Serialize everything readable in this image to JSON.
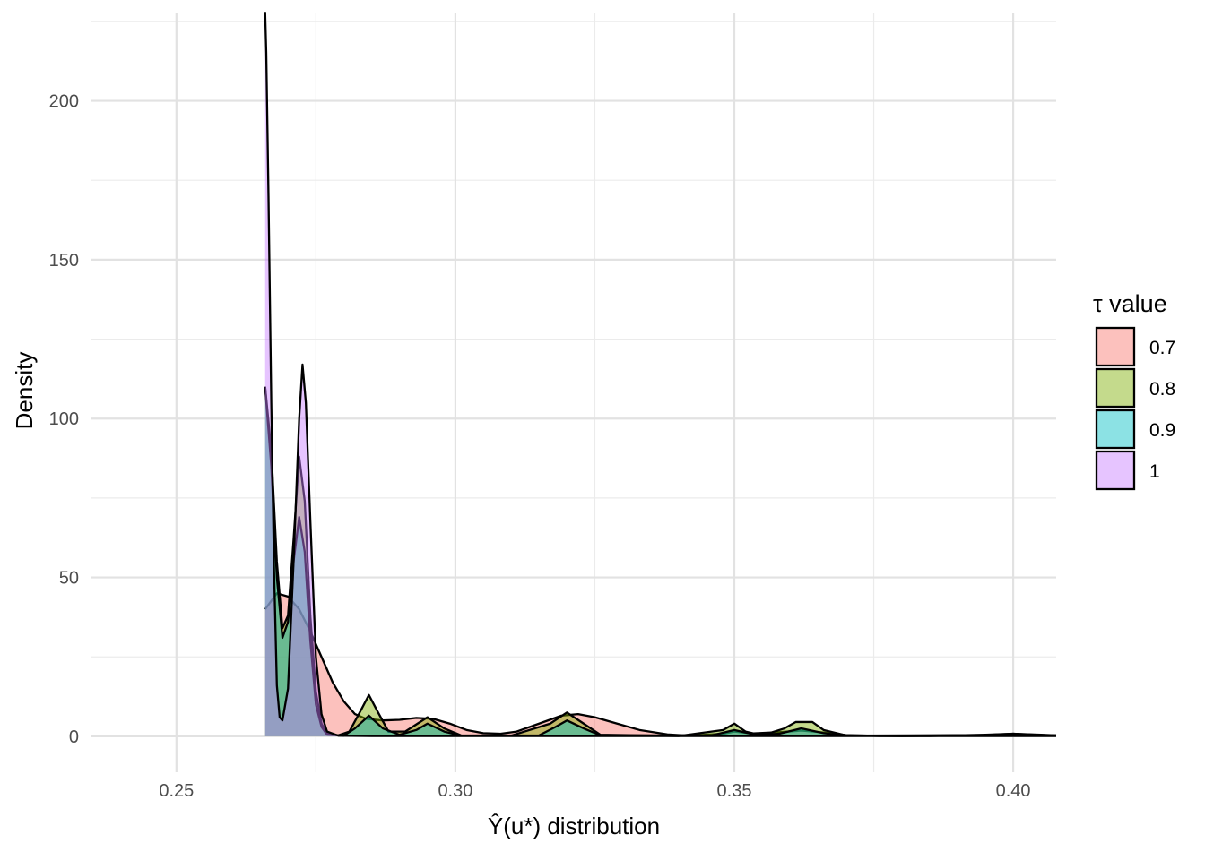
{
  "chart_data": {
    "type": "area",
    "title": "",
    "xlabel": "Ŷ(u*) distribution",
    "ylabel": "Density",
    "xlim": [
      0.2346,
      0.4077
    ],
    "ylim": [
      -11.3,
      227.5
    ],
    "x_ticks": [
      0.25,
      0.3,
      0.35,
      0.4
    ],
    "x_tick_labels": [
      "0.25",
      "0.30",
      "0.35",
      "0.40"
    ],
    "y_ticks": [
      0,
      50,
      100,
      150,
      200
    ],
    "y_tick_labels": [
      "0",
      "50",
      "100",
      "150",
      "200"
    ],
    "grid": true,
    "legend": {
      "title": "τ value",
      "position": "right"
    },
    "series": [
      {
        "name": "0.7",
        "color": "#F8766D",
        "points": [
          [
            0.2659,
            40
          ],
          [
            0.268,
            45
          ],
          [
            0.27,
            44
          ],
          [
            0.272,
            40
          ],
          [
            0.274,
            33
          ],
          [
            0.276,
            25
          ],
          [
            0.278,
            17
          ],
          [
            0.28,
            11
          ],
          [
            0.282,
            7
          ],
          [
            0.284,
            5.5
          ],
          [
            0.287,
            5
          ],
          [
            0.29,
            5.2
          ],
          [
            0.293,
            5.8
          ],
          [
            0.296,
            5.5
          ],
          [
            0.299,
            4
          ],
          [
            0.302,
            2
          ],
          [
            0.305,
            1
          ],
          [
            0.308,
            0.8
          ],
          [
            0.311,
            1.5
          ],
          [
            0.315,
            4
          ],
          [
            0.319,
            6.5
          ],
          [
            0.322,
            7
          ],
          [
            0.325,
            6
          ],
          [
            0.329,
            4
          ],
          [
            0.333,
            2
          ],
          [
            0.338,
            0.6
          ],
          [
            0.342,
            0.2
          ],
          [
            0.348,
            0.8
          ],
          [
            0.35,
            1.5
          ],
          [
            0.353,
            0.9
          ],
          [
            0.358,
            1.3
          ],
          [
            0.362,
            1.8
          ],
          [
            0.366,
            1.2
          ],
          [
            0.37,
            0.4
          ],
          [
            0.376,
            0.1
          ],
          [
            0.385,
            0.1
          ],
          [
            0.395,
            0.5
          ],
          [
            0.4,
            0.8
          ],
          [
            0.405,
            0.5
          ],
          [
            0.4077,
            0.3
          ]
        ]
      },
      {
        "name": "0.8",
        "color": "#7CAE00",
        "points": [
          [
            0.2659,
            110
          ],
          [
            0.267,
            90
          ],
          [
            0.268,
            55
          ],
          [
            0.269,
            34
          ],
          [
            0.27,
            38
          ],
          [
            0.271,
            62
          ],
          [
            0.272,
            88
          ],
          [
            0.273,
            74
          ],
          [
            0.274,
            38
          ],
          [
            0.275,
            14
          ],
          [
            0.276,
            4
          ],
          [
            0.277,
            1
          ],
          [
            0.279,
            0.3
          ],
          [
            0.281,
            1.5
          ],
          [
            0.283,
            8
          ],
          [
            0.2845,
            13
          ],
          [
            0.286,
            8
          ],
          [
            0.288,
            1.5
          ],
          [
            0.291,
            1.5
          ],
          [
            0.295,
            6
          ],
          [
            0.298,
            2.5
          ],
          [
            0.301,
            0.3
          ],
          [
            0.31,
            0.2
          ],
          [
            0.317,
            4
          ],
          [
            0.32,
            7.5
          ],
          [
            0.323,
            4
          ],
          [
            0.326,
            0.5
          ],
          [
            0.34,
            0.1
          ],
          [
            0.348,
            2
          ],
          [
            0.35,
            4
          ],
          [
            0.352,
            1.5
          ],
          [
            0.355,
            0.3
          ],
          [
            0.359,
            2.5
          ],
          [
            0.361,
            4.5
          ],
          [
            0.364,
            4.5
          ],
          [
            0.366,
            2
          ],
          [
            0.37,
            0.3
          ],
          [
            0.38,
            0.1
          ],
          [
            0.395,
            0.4
          ],
          [
            0.4,
            0.8
          ],
          [
            0.405,
            0.4
          ],
          [
            0.4077,
            0.3
          ]
        ]
      },
      {
        "name": "0.9",
        "color": "#00BFC4",
        "points": [
          [
            0.2659,
            110
          ],
          [
            0.267,
            85
          ],
          [
            0.268,
            50
          ],
          [
            0.269,
            31
          ],
          [
            0.27,
            36
          ],
          [
            0.271,
            55
          ],
          [
            0.272,
            69
          ],
          [
            0.273,
            58
          ],
          [
            0.274,
            30
          ],
          [
            0.275,
            10
          ],
          [
            0.276,
            3
          ],
          [
            0.277,
            0.5
          ],
          [
            0.28,
            0.2
          ],
          [
            0.282,
            2.5
          ],
          [
            0.2845,
            6.5
          ],
          [
            0.287,
            2.5
          ],
          [
            0.29,
            0.5
          ],
          [
            0.293,
            2
          ],
          [
            0.295,
            4
          ],
          [
            0.298,
            1.5
          ],
          [
            0.301,
            0.2
          ],
          [
            0.315,
            0.3
          ],
          [
            0.318,
            3
          ],
          [
            0.32,
            5
          ],
          [
            0.323,
            2.5
          ],
          [
            0.326,
            0.3
          ],
          [
            0.346,
            0.3
          ],
          [
            0.35,
            2
          ],
          [
            0.354,
            0.4
          ],
          [
            0.358,
            0.8
          ],
          [
            0.362,
            2.5
          ],
          [
            0.366,
            1
          ],
          [
            0.37,
            0.2
          ],
          [
            0.395,
            0.4
          ],
          [
            0.4,
            0.7
          ],
          [
            0.405,
            0.4
          ],
          [
            0.4077,
            0.3
          ]
        ]
      },
      {
        "name": "1",
        "color": "#C77CFF",
        "points": [
          [
            0.2659,
            228
          ],
          [
            0.2661,
            215
          ],
          [
            0.2665,
            170
          ],
          [
            0.267,
            105
          ],
          [
            0.2675,
            52
          ],
          [
            0.268,
            16
          ],
          [
            0.2685,
            6
          ],
          [
            0.269,
            5
          ],
          [
            0.27,
            15
          ],
          [
            0.271,
            55
          ],
          [
            0.272,
            100
          ],
          [
            0.2726,
            117
          ],
          [
            0.2732,
            105
          ],
          [
            0.274,
            68
          ],
          [
            0.275,
            25
          ],
          [
            0.276,
            7
          ],
          [
            0.277,
            1.5
          ],
          [
            0.279,
            0.2
          ],
          [
            0.285,
            0.1
          ],
          [
            0.3,
            0.1
          ],
          [
            0.35,
            0.1
          ],
          [
            0.4,
            0.1
          ],
          [
            0.4077,
            0.1
          ]
        ]
      }
    ]
  }
}
